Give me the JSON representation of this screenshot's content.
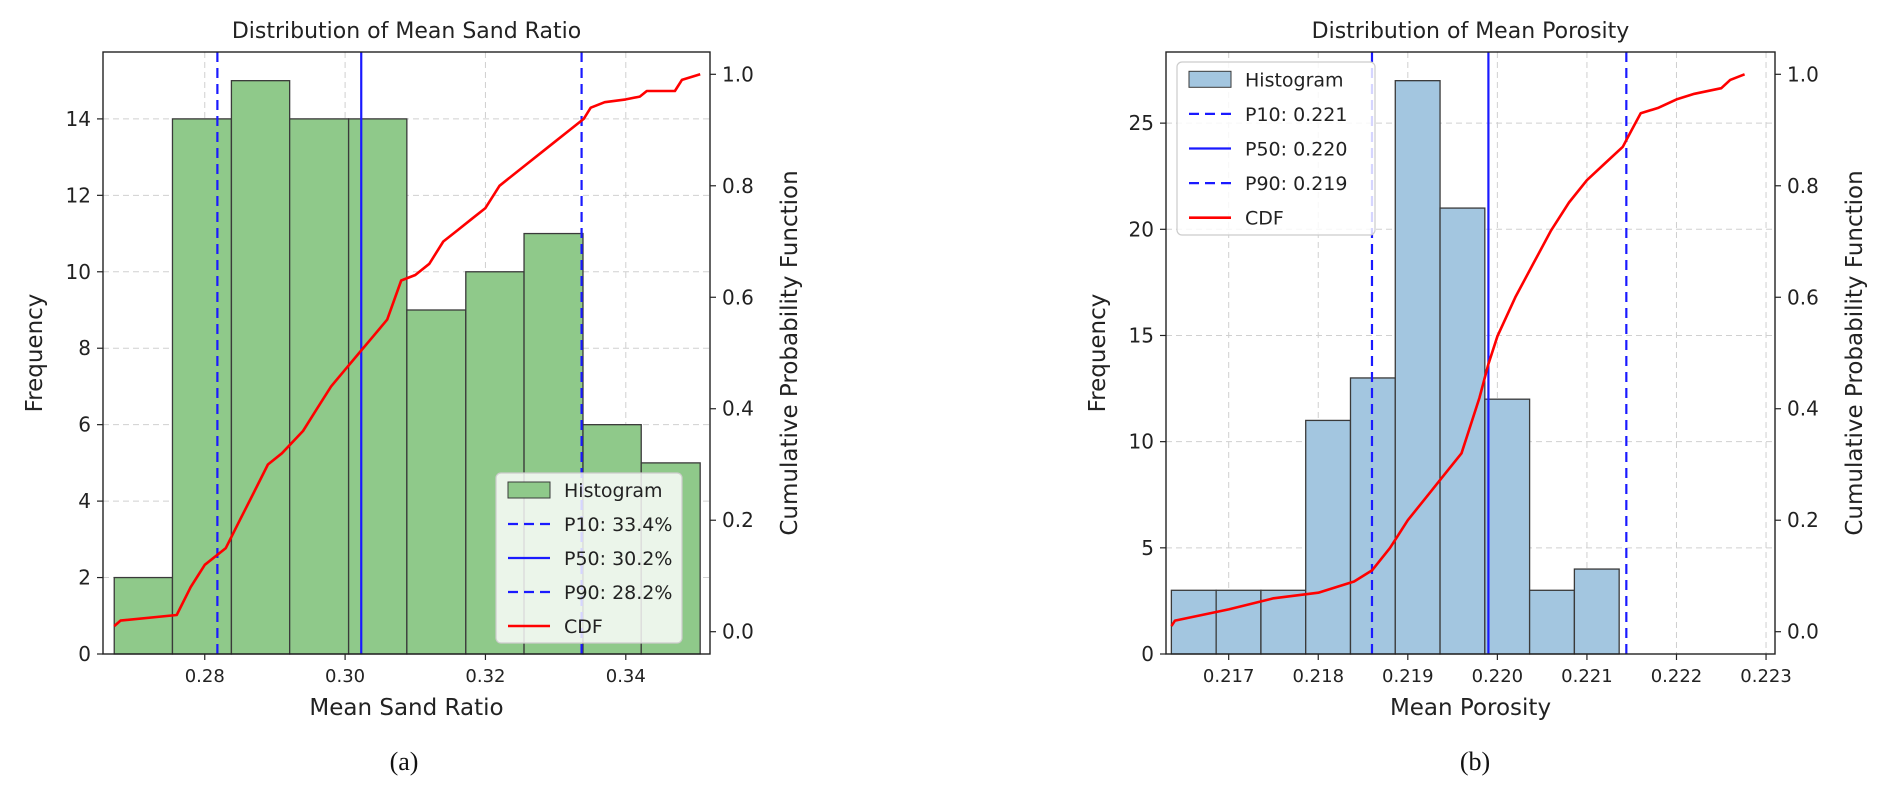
{
  "chart_data": [
    {
      "type": "bar",
      "title": "Distribution of Mean Sand Ratio",
      "xlabel": "Mean Sand Ratio",
      "ylabel": "Frequency",
      "y2label": "Cumulative Probability Function",
      "caption": "(a)",
      "bar_color": "#8fc98a",
      "xlim": [
        0.2655,
        0.352
      ],
      "ylim": [
        0,
        15.75
      ],
      "y2lim": [
        -0.04,
        1.04
      ],
      "xticks": [
        0.28,
        0.3,
        0.32,
        0.34
      ],
      "xtick_labels": [
        "0.28",
        "0.30",
        "0.32",
        "0.34"
      ],
      "yticks": [
        0,
        2,
        4,
        6,
        8,
        10,
        12,
        14
      ],
      "ytick_labels": [
        "0",
        "2",
        "4",
        "6",
        "8",
        "10",
        "12",
        "14"
      ],
      "y2ticks": [
        0.0,
        0.2,
        0.4,
        0.6,
        0.8,
        1.0
      ],
      "y2tick_labels": [
        "0.0",
        "0.2",
        "0.4",
        "0.6",
        "0.8",
        "1.0"
      ],
      "bins": [
        {
          "left": 0.2671,
          "right": 0.2754,
          "count": 2
        },
        {
          "left": 0.2754,
          "right": 0.2838,
          "count": 14
        },
        {
          "left": 0.2838,
          "right": 0.2921,
          "count": 15
        },
        {
          "left": 0.2921,
          "right": 0.3005,
          "count": 14
        },
        {
          "left": 0.3005,
          "right": 0.3088,
          "count": 14
        },
        {
          "left": 0.3088,
          "right": 0.3172,
          "count": 9
        },
        {
          "left": 0.3172,
          "right": 0.3255,
          "count": 10
        },
        {
          "left": 0.3255,
          "right": 0.3339,
          "count": 11
        },
        {
          "left": 0.3339,
          "right": 0.3422,
          "count": 6
        },
        {
          "left": 0.3422,
          "right": 0.3506,
          "count": 5
        }
      ],
      "percentile_lines": [
        {
          "label": "P10: 33.4%",
          "x": 0.3337,
          "style": "dashed"
        },
        {
          "label": "P50: 30.2%",
          "x": 0.3023,
          "style": "solid"
        },
        {
          "label": "P90: 28.2%",
          "x": 0.2818,
          "style": "dashed"
        }
      ],
      "cdf": {
        "label": "CDF",
        "x": [
          0.2671,
          0.268,
          0.276,
          0.278,
          0.279,
          0.28,
          0.283,
          0.285,
          0.287,
          0.289,
          0.291,
          0.294,
          0.296,
          0.298,
          0.3,
          0.302,
          0.304,
          0.306,
          0.308,
          0.31,
          0.312,
          0.314,
          0.316,
          0.318,
          0.32,
          0.322,
          0.324,
          0.326,
          0.328,
          0.33,
          0.332,
          0.334,
          0.335,
          0.337,
          0.34,
          0.342,
          0.343,
          0.347,
          0.348,
          0.3506
        ],
        "y": [
          0.01,
          0.02,
          0.03,
          0.08,
          0.1,
          0.12,
          0.15,
          0.2,
          0.25,
          0.3,
          0.32,
          0.36,
          0.4,
          0.44,
          0.47,
          0.5,
          0.53,
          0.56,
          0.63,
          0.64,
          0.66,
          0.7,
          0.72,
          0.74,
          0.76,
          0.8,
          0.82,
          0.84,
          0.86,
          0.88,
          0.9,
          0.92,
          0.94,
          0.95,
          0.955,
          0.96,
          0.97,
          0.97,
          0.99,
          1.0
        ]
      },
      "legend": {
        "position": "lower-right",
        "items": [
          "Histogram",
          "P10: 33.4%",
          "P50: 30.2%",
          "P90: 28.2%",
          "CDF"
        ]
      }
    },
    {
      "type": "bar",
      "title": "Distribution of Mean Porosity",
      "xlabel": "Mean Porosity",
      "ylabel": "Frequency",
      "y2label": "Cumulative Probability Function",
      "caption": "(b)",
      "bar_color": "#a3c6e0",
      "xlim": [
        0.2163,
        0.2231
      ],
      "ylim": [
        0,
        28.35
      ],
      "y2lim": [
        -0.04,
        1.04
      ],
      "xticks": [
        0.217,
        0.218,
        0.219,
        0.22,
        0.221,
        0.222,
        0.223
      ],
      "xtick_labels": [
        "0.217",
        "0.218",
        "0.219",
        "0.220",
        "0.221",
        "0.222",
        "0.223"
      ],
      "yticks": [
        0,
        5,
        10,
        15,
        20,
        25
      ],
      "ytick_labels": [
        "0",
        "5",
        "10",
        "15",
        "20",
        "25"
      ],
      "y2ticks": [
        0.0,
        0.2,
        0.4,
        0.6,
        0.8,
        1.0
      ],
      "y2tick_labels": [
        "0.0",
        "0.2",
        "0.4",
        "0.6",
        "0.8",
        "1.0"
      ],
      "bins": [
        {
          "left": 0.21636,
          "right": 0.21686,
          "count": 3
        },
        {
          "left": 0.21686,
          "right": 0.21736,
          "count": 3
        },
        {
          "left": 0.21736,
          "right": 0.21786,
          "count": 3
        },
        {
          "left": 0.21786,
          "right": 0.21836,
          "count": 11
        },
        {
          "left": 0.21836,
          "right": 0.21886,
          "count": 13
        },
        {
          "left": 0.21886,
          "right": 0.21936,
          "count": 27
        },
        {
          "left": 0.21936,
          "right": 0.21986,
          "count": 21
        },
        {
          "left": 0.21986,
          "right": 0.22036,
          "count": 12
        },
        {
          "left": 0.22036,
          "right": 0.22086,
          "count": 3
        },
        {
          "left": 0.22086,
          "right": 0.22136,
          "count": 4
        }
      ],
      "percentile_lines": [
        {
          "label": "P10: 0.221",
          "x": 0.22144,
          "style": "dashed"
        },
        {
          "label": "P50: 0.220",
          "x": 0.2199,
          "style": "solid"
        },
        {
          "label": "P90: 0.219",
          "x": 0.2186,
          "style": "dashed"
        }
      ],
      "cdf": {
        "label": "CDF",
        "x": [
          0.21636,
          0.2164,
          0.217,
          0.2175,
          0.218,
          0.2184,
          0.2186,
          0.2188,
          0.219,
          0.2192,
          0.2194,
          0.2196,
          0.2197,
          0.2198,
          0.2199,
          0.22,
          0.2202,
          0.2204,
          0.2206,
          0.2208,
          0.221,
          0.2212,
          0.2214,
          0.2215,
          0.2216,
          0.2218,
          0.222,
          0.2222,
          0.2225,
          0.2226,
          0.22276
        ],
        "y": [
          0.01,
          0.02,
          0.04,
          0.06,
          0.07,
          0.09,
          0.11,
          0.15,
          0.2,
          0.24,
          0.28,
          0.32,
          0.37,
          0.42,
          0.48,
          0.53,
          0.6,
          0.66,
          0.72,
          0.77,
          0.81,
          0.84,
          0.87,
          0.9,
          0.93,
          0.94,
          0.955,
          0.965,
          0.975,
          0.99,
          1.0
        ]
      },
      "legend": {
        "position": "top-left",
        "items": [
          "Histogram",
          "P10: 0.221",
          "P50: 0.220",
          "P90: 0.219",
          "CDF"
        ]
      }
    }
  ],
  "colors": {
    "percentile_line": "#1a1aff",
    "cdf_line": "#ff0000",
    "grid": "#d0d0d0",
    "bar_edge": "#3a3a3a"
  }
}
